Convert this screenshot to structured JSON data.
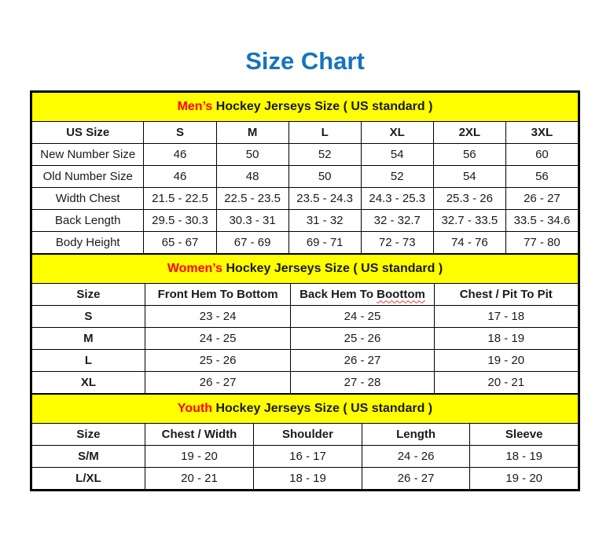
{
  "title": "Size Chart",
  "colors": {
    "title_blue": "#1673BD",
    "band_yellow": "#FFFF00",
    "accent_red": "#FF0000",
    "text_black": "#1A1A1A",
    "border_black": "#000000",
    "squiggle_red": "#E03A2F"
  },
  "chart_data": [
    {
      "type": "table",
      "name": "mens",
      "band": {
        "highlight": "Men’s",
        "rest": " Hockey Jerseys Size ( US standard )"
      },
      "columns": [
        "US Size",
        "S",
        "M",
        "L",
        "XL",
        "2XL",
        "3XL"
      ],
      "col_widths": [
        "20.5%",
        "13.25%",
        "13.25%",
        "13.25%",
        "13.25%",
        "13.25%",
        "13.25%"
      ],
      "bold_row_labels": false,
      "rows": [
        [
          "New Number Size",
          "46",
          "50",
          "52",
          "54",
          "56",
          "60"
        ],
        [
          "Old Number Size",
          "46",
          "48",
          "50",
          "52",
          "54",
          "56"
        ],
        [
          "Width Chest",
          "21.5 - 22.5",
          "22.5 - 23.5",
          "23.5 - 24.3",
          "24.3 - 25.3",
          "25.3 - 26",
          "26 - 27"
        ],
        [
          "Back Length",
          "29.5 - 30.3",
          "30.3 - 31",
          "31 - 32",
          "32 - 32.7",
          "32.7 - 33.5",
          "33.5 - 34.6"
        ],
        [
          "Body Height",
          "65 - 67",
          "67 - 69",
          "69 - 71",
          "72 - 73",
          "74 - 76",
          "77 - 80"
        ]
      ]
    },
    {
      "type": "table",
      "name": "womens",
      "band": {
        "highlight": "Women’s",
        "rest": " Hockey Jerseys Size ( US standard )"
      },
      "columns": [
        "Size",
        "Front Hem To Bottom",
        {
          "text": "Back Hem To ",
          "misspelled": "Boottom"
        },
        "Chest / Pit To Pit"
      ],
      "col_widths": [
        "20.7%",
        "26.7%",
        "26.2%",
        "26.4%"
      ],
      "bold_row_labels": true,
      "rows": [
        [
          "S",
          "23 - 24",
          "24 - 25",
          "17 - 18"
        ],
        [
          "M",
          "24 - 25",
          "25 - 26",
          "18 - 19"
        ],
        [
          "L",
          "25 - 26",
          "26 - 27",
          "19 - 20"
        ],
        [
          "XL",
          "26 - 27",
          "27 - 28",
          "20 - 21"
        ]
      ]
    },
    {
      "type": "table",
      "name": "youth",
      "band": {
        "highlight": "Youth",
        "rest": " Hockey Jerseys Size ( US standard )"
      },
      "columns": [
        "Size",
        "Chest / Width",
        "Shoulder",
        "Length",
        "Sleeve"
      ],
      "col_widths": [
        "20.7%",
        "19.9%",
        "19.8%",
        "19.8%",
        "19.8%"
      ],
      "bold_row_labels": true,
      "rows": [
        [
          "S/M",
          "19 - 20",
          "16 - 17",
          "24 - 26",
          "18 - 19"
        ],
        [
          "L/XL",
          "20 - 21",
          "18 - 19",
          "26 - 27",
          "19 - 20"
        ]
      ]
    }
  ]
}
